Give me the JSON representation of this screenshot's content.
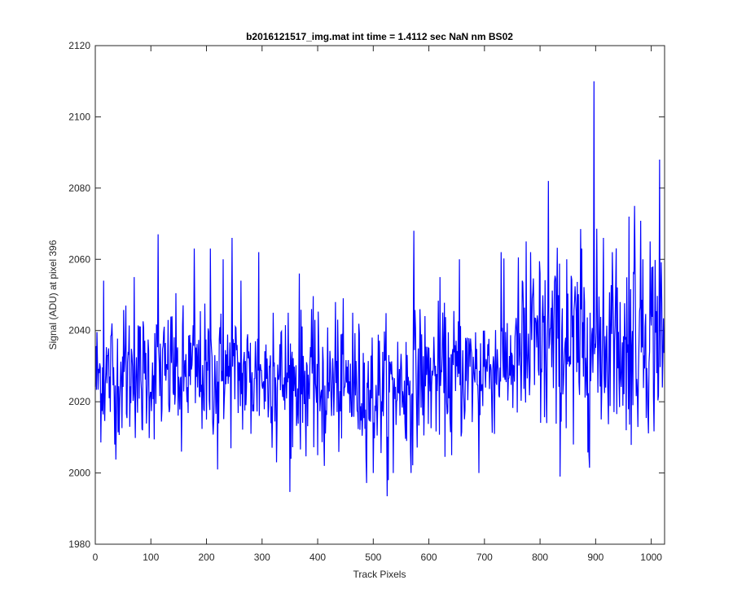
{
  "chart_data": {
    "type": "line",
    "title": "b2016121517_img.mat int time = 1.4112 sec  NaN nm BS02",
    "xlabel": "Track Pixels",
    "ylabel": "Signal (ADU) at pixel 396",
    "xlim": [
      0,
      1024
    ],
    "ylim": [
      1980,
      2120
    ],
    "xticks": [
      0,
      100,
      200,
      300,
      400,
      500,
      600,
      700,
      800,
      900,
      1000
    ],
    "yticks": [
      1980,
      2000,
      2020,
      2040,
      2060,
      2080,
      2100,
      2120
    ],
    "grid": false,
    "series_color": "#0000ff",
    "trend": [
      [
        0,
        2027
      ],
      [
        100,
        2028
      ],
      [
        200,
        2028
      ],
      [
        300,
        2027
      ],
      [
        400,
        2025
      ],
      [
        500,
        2023
      ],
      [
        600,
        2027
      ],
      [
        700,
        2029
      ],
      [
        800,
        2034
      ],
      [
        900,
        2036
      ],
      [
        1024,
        2040
      ]
    ],
    "noise_sigma": 9,
    "spikes": [
      [
        15,
        2054
      ],
      [
        30,
        2042
      ],
      [
        35,
        2008
      ],
      [
        55,
        2047
      ],
      [
        70,
        2055
      ],
      [
        85,
        2012
      ],
      [
        113,
        2067
      ],
      [
        120,
        2018
      ],
      [
        138,
        2044
      ],
      [
        155,
        2006
      ],
      [
        178,
        2063
      ],
      [
        200,
        2015
      ],
      [
        207,
        2063
      ],
      [
        220,
        2001
      ],
      [
        230,
        2060
      ],
      [
        246,
        2066
      ],
      [
        262,
        2054
      ],
      [
        280,
        2011
      ],
      [
        294,
        2062
      ],
      [
        320,
        2045
      ],
      [
        326,
        2003
      ],
      [
        347,
        2045
      ],
      [
        352,
        2004
      ],
      [
        367,
        2056
      ],
      [
        395,
        2043
      ],
      [
        400,
        2005
      ],
      [
        412,
        2002
      ],
      [
        432,
        2048
      ],
      [
        463,
        2045
      ],
      [
        500,
        2000
      ],
      [
        527,
        1998
      ],
      [
        536,
        2000
      ],
      [
        560,
        2009
      ],
      [
        573,
        2068
      ],
      [
        568,
        2000
      ],
      [
        584,
        2046
      ],
      [
        620,
        2055
      ],
      [
        641,
        2005
      ],
      [
        655,
        2060
      ],
      [
        690,
        2000
      ],
      [
        700,
        2040
      ],
      [
        730,
        2062
      ],
      [
        760,
        2044
      ],
      [
        775,
        2065
      ],
      [
        783,
        2062
      ],
      [
        800,
        2056
      ],
      [
        815,
        2082
      ],
      [
        830,
        2049
      ],
      [
        848,
        2060
      ],
      [
        860,
        2008
      ],
      [
        875,
        2063
      ],
      [
        890,
        2045
      ],
      [
        897,
        2110
      ],
      [
        914,
        2066
      ],
      [
        930,
        2062
      ],
      [
        944,
        2048
      ],
      [
        955,
        2012
      ],
      [
        960,
        2072
      ],
      [
        970,
        2075
      ],
      [
        985,
        2060
      ],
      [
        998,
        2065
      ],
      [
        1010,
        2028
      ],
      [
        1015,
        2088
      ],
      [
        1020,
        2024
      ]
    ],
    "samples": 1024
  }
}
